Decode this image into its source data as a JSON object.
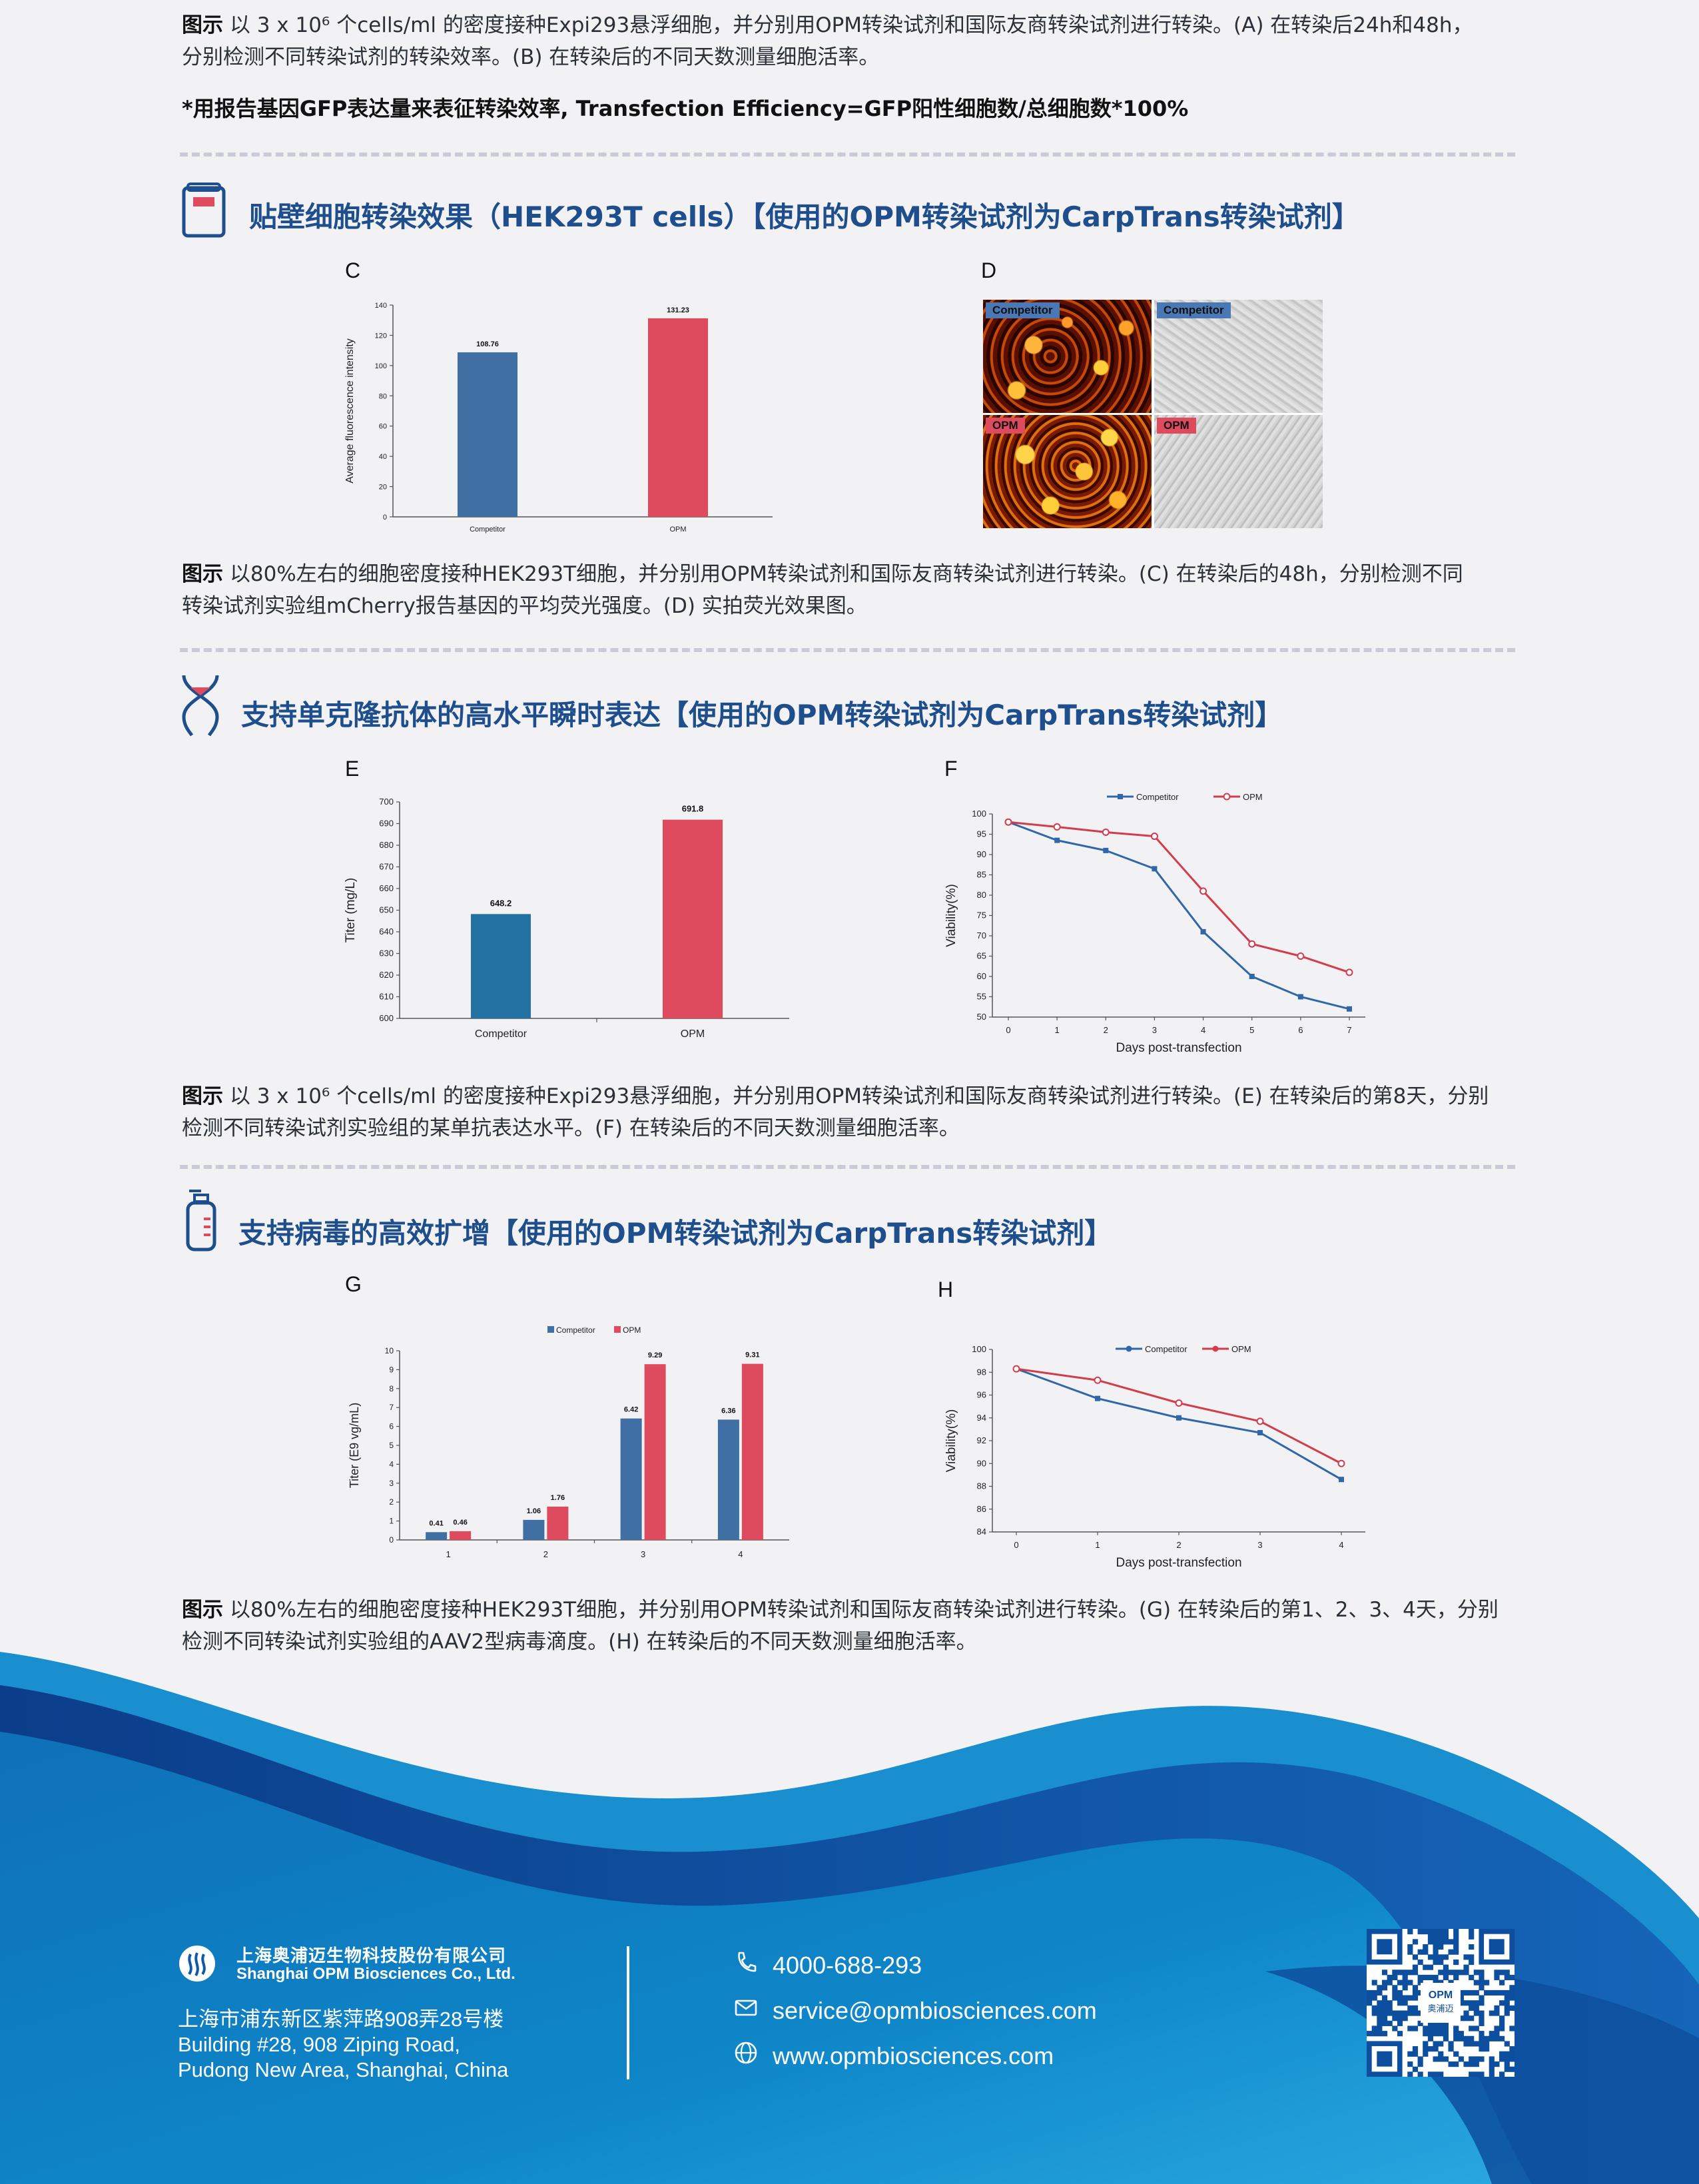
{
  "caption_ab": {
    "label": "图示",
    "line1": "以 3 x 10⁶ 个cells/ml 的密度接种Expi293悬浮细胞，并分别用OPM转染试剂和国际友商转染试剂进行转染。(A) 在转染后24h和48h，",
    "line2": "分别检测不同转染试剂的转染效率。(B) 在转染后的不同天数测量细胞活率。"
  },
  "note": "*用报告基因GFP表达量来表征转染效率, Transfection Efficiency=GFP阳性细胞数/总细胞数*100%",
  "sections": {
    "adherent": {
      "title": "贴壁细胞转染效果（HEK293T cells）【使用的OPM转染试剂为CarpTrans转染试剂】",
      "icon": "reagent-bottle-icon"
    },
    "antibody": {
      "title": "支持单克隆抗体的高水平瞬时表达【使用的OPM转染试剂为CarpTrans转染试剂】",
      "icon": "dna-helix-icon"
    },
    "virus": {
      "title": "支持病毒的高效扩增【使用的OPM转染试剂为CarpTrans转染试剂】",
      "icon": "wash-bottle-icon"
    }
  },
  "panels": {
    "C": {
      "letter": "C"
    },
    "D": {
      "letter": "D",
      "tags": [
        "Competitor",
        "Competitor",
        "OPM",
        "OPM"
      ]
    },
    "E": {
      "letter": "E"
    },
    "F": {
      "letter": "F"
    },
    "G": {
      "letter": "G"
    },
    "H": {
      "letter": "H"
    }
  },
  "caption_cd": {
    "label": "图示",
    "line1": "以80%左右的细胞密度接种HEK293T细胞，并分别用OPM转染试剂和国际友商转染试剂进行转染。(C) 在转染后的48h，分别检测不同",
    "line2": "转染试剂实验组mCherry报告基因的平均荧光强度。(D) 实拍荧光效果图。"
  },
  "caption_ef": {
    "label": "图示",
    "line1": "以 3 x 10⁶ 个cells/ml 的密度接种Expi293悬浮细胞，并分别用OPM转染试剂和国际友商转染试剂进行转染。(E) 在转染后的第8天，分别",
    "line2": "检测不同转染试剂实验组的某单抗表达水平。(F) 在转染后的不同天数测量细胞活率。"
  },
  "caption_gh": {
    "label": "图示",
    "line1": "以80%左右的细胞密度接种HEK293T细胞，并分别用OPM转染试剂和国际友商转染试剂进行转染。(G) 在转染后的第1、2、3、4天，分别",
    "line2": "检测不同转染试剂实验组的AAV2型病毒滴度。(H) 在转染后的不同天数测量细胞活率。"
  },
  "footer": {
    "company_cn": "上海奥浦迈生物科技股份有限公司",
    "company_en": "Shanghai OPM Biosciences Co., Ltd.",
    "address_cn": "上海市浦东新区紫萍路908弄28号楼",
    "address_en1": "Building #28, 908 Ziping Road,",
    "address_en2": "Pudong New Area, Shanghai, China",
    "phone": "4000-688-293",
    "email": "service@opmbiosciences.com",
    "website": "www.opmbiosciences.com",
    "qr_label_top": "OPM",
    "qr_label_bottom": "奥浦迈",
    "colors": {
      "wave_dark": "#0d4f9e",
      "wave_light": "#1aa0db"
    }
  },
  "chart_data": [
    {
      "id": "C",
      "type": "bar",
      "categories": [
        "Competitor",
        "OPM"
      ],
      "values": [
        108.76,
        131.23
      ],
      "value_labels": [
        "108.76",
        "131.23"
      ],
      "colors": [
        "#3f6fa3",
        "#de4a5e"
      ],
      "ylabel": "Average fluorescence intensity",
      "ylim": [
        0,
        140
      ],
      "yticks": [
        0,
        20,
        40,
        60,
        80,
        100,
        120,
        140
      ]
    },
    {
      "id": "E",
      "type": "bar",
      "categories": [
        "Competitor",
        "OPM"
      ],
      "values": [
        648.2,
        691.8
      ],
      "value_labels": [
        "648.2",
        "691.8"
      ],
      "colors": [
        "#2471a3",
        "#de4a5e"
      ],
      "ylabel": "Titer (mg/L)",
      "ylim": [
        600,
        700
      ],
      "yticks": [
        600,
        610,
        620,
        630,
        640,
        650,
        660,
        670,
        680,
        690,
        700
      ]
    },
    {
      "id": "F",
      "type": "line",
      "x": [
        0,
        1,
        2,
        3,
        4,
        5,
        6,
        7
      ],
      "series": [
        {
          "name": "Competitor",
          "values": [
            98,
            93.5,
            91,
            86.5,
            71,
            60,
            55,
            52
          ],
          "color": "#2f67a8"
        },
        {
          "name": "OPM",
          "values": [
            98,
            96.8,
            95.5,
            94.5,
            81,
            68,
            65,
            61
          ],
          "color": "#d23c4d"
        }
      ],
      "xlabel": "Days  post-transfection",
      "ylabel": "Viability(%)",
      "ylim": [
        50,
        100
      ],
      "yticks": [
        50,
        55,
        60,
        65,
        70,
        75,
        80,
        85,
        90,
        95,
        100
      ],
      "legend": "top"
    },
    {
      "id": "G",
      "type": "bar",
      "categories": [
        "1",
        "2",
        "3",
        "4"
      ],
      "series": [
        {
          "name": "Competitor",
          "values": [
            0.41,
            1.06,
            6.42,
            6.36
          ],
          "labels": [
            "0.41",
            "1.06",
            "6.42",
            "6.36"
          ],
          "color": "#3f6fa3"
        },
        {
          "name": "OPM",
          "values": [
            0.46,
            1.76,
            9.29,
            9.31
          ],
          "labels": [
            "0.46",
            "1.76",
            "9.29",
            "9.31"
          ],
          "color": "#de4a5e"
        }
      ],
      "ylabel": "Titer (E9 vg/mL)",
      "ylim": [
        0,
        10
      ],
      "yticks": [
        0,
        1,
        2,
        3,
        4,
        5,
        6,
        7,
        8,
        9,
        10
      ],
      "legend": "top"
    },
    {
      "id": "H",
      "type": "line",
      "x": [
        0,
        1,
        2,
        3,
        4
      ],
      "series": [
        {
          "name": "Competitor",
          "values": [
            98.3,
            95.7,
            94,
            92.7,
            88.6
          ],
          "color": "#2f67a8"
        },
        {
          "name": "OPM",
          "values": [
            98.3,
            97.3,
            95.3,
            93.7,
            90
          ],
          "color": "#d23c4d"
        }
      ],
      "xlabel": "Days  post-transfection",
      "ylabel": "Viability(%)",
      "ylim": [
        84,
        100
      ],
      "yticks": [
        84,
        86,
        88,
        90,
        92,
        94,
        96,
        98,
        100
      ],
      "legend": "top"
    }
  ]
}
